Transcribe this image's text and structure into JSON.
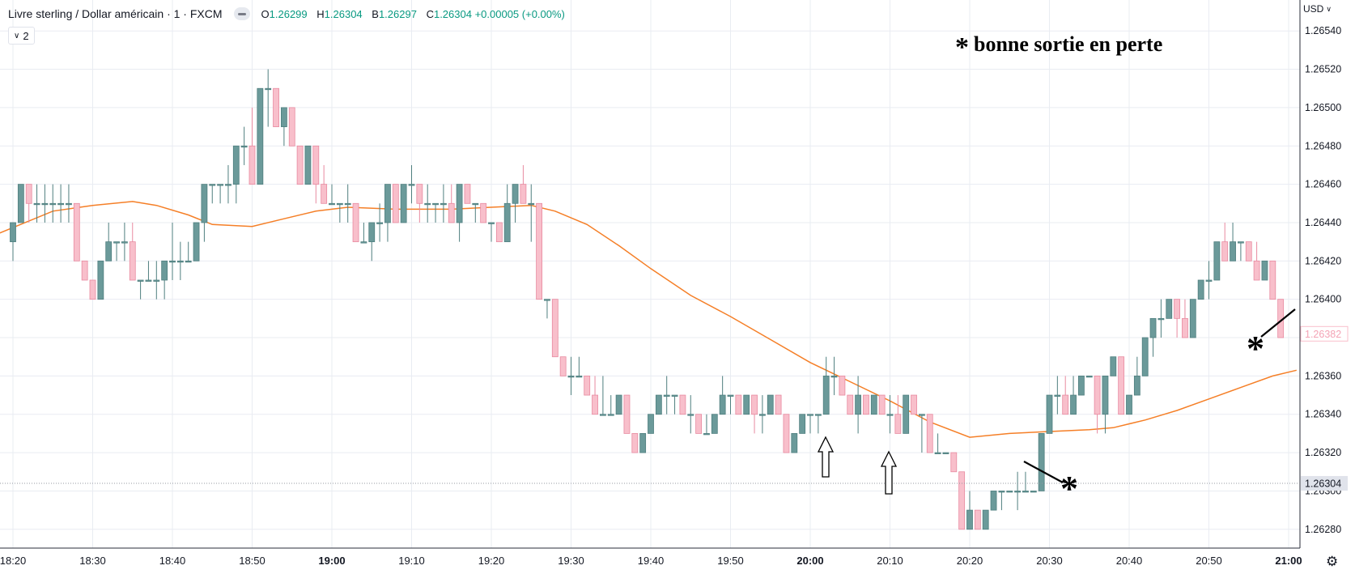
{
  "header": {
    "title": "Livre sterling / Dollar américain · 1 · FXCM",
    "ohlc": [
      {
        "k": "O",
        "v": "1.26299"
      },
      {
        "k": "H",
        "v": "1.26304"
      },
      {
        "k": "B",
        "v": "1.26297"
      },
      {
        "k": "C",
        "v": "1.26304 +0.00005 (+0.00%)"
      }
    ]
  },
  "indicator_toggle": {
    "count": "2"
  },
  "currency": "USD",
  "annotation": {
    "text": "bonne sortie en perte",
    "star": "*"
  },
  "colors": {
    "up": "#6b9a9a",
    "down": "#f8bfcb",
    "ma": "#f57f27",
    "grid": "#e9ecf2"
  },
  "chart_data": {
    "type": "candlestick",
    "y_ticks": [
      1.2628,
      1.263,
      1.2632,
      1.2634,
      1.2636,
      1.2638,
      1.264,
      1.2642,
      1.2644,
      1.2646,
      1.2648,
      1.265,
      1.2652,
      1.2654
    ],
    "y_tick_labels": [
      "1.26280",
      "1.26300",
      "1.26320",
      "1.26340",
      "1.26360",
      "",
      "1.26400",
      "1.26420",
      "1.26440",
      "1.26460",
      "1.26480",
      "1.26500",
      "1.26520",
      "1.26540"
    ],
    "ylim": [
      1.26274,
      1.26546
    ],
    "x_ticks": [
      {
        "m": 0,
        "label": "18:20",
        "bold": false
      },
      {
        "m": 10,
        "label": "18:30",
        "bold": false
      },
      {
        "m": 20,
        "label": "18:40",
        "bold": false
      },
      {
        "m": 30,
        "label": "18:50",
        "bold": false
      },
      {
        "m": 40,
        "label": "19:00",
        "bold": true
      },
      {
        "m": 50,
        "label": "19:10",
        "bold": false
      },
      {
        "m": 60,
        "label": "19:20",
        "bold": false
      },
      {
        "m": 70,
        "label": "19:30",
        "bold": false
      },
      {
        "m": 80,
        "label": "19:40",
        "bold": false
      },
      {
        "m": 90,
        "label": "19:50",
        "bold": false
      },
      {
        "m": 100,
        "label": "20:00",
        "bold": true
      },
      {
        "m": 110,
        "label": "20:10",
        "bold": false
      },
      {
        "m": 120,
        "label": "20:20",
        "bold": false
      },
      {
        "m": 130,
        "label": "20:30",
        "bold": false
      },
      {
        "m": 140,
        "label": "20:40",
        "bold": false
      },
      {
        "m": 150,
        "label": "20:50",
        "bold": false
      },
      {
        "m": 160,
        "label": "21:00",
        "bold": true
      }
    ],
    "last_price": {
      "value": 1.26304,
      "label": "1.26304"
    },
    "marker_price": {
      "value": 1.26382,
      "label": "1.26382"
    },
    "ohlc": [
      [
        1.2643,
        1.2644,
        1.2642,
        1.2644
      ],
      [
        1.2644,
        1.2646,
        1.2644,
        1.2646
      ],
      [
        1.2646,
        1.2646,
        1.2644,
        1.2645
      ],
      [
        1.2645,
        1.2646,
        1.2644,
        1.2645
      ],
      [
        1.2645,
        1.2646,
        1.2644,
        1.2645
      ],
      [
        1.2645,
        1.2646,
        1.2644,
        1.2645
      ],
      [
        1.2645,
        1.2646,
        1.2644,
        1.2645
      ],
      [
        1.2645,
        1.2646,
        1.2644,
        1.2645
      ],
      [
        1.2645,
        1.2645,
        1.2642,
        1.2642
      ],
      [
        1.2642,
        1.2642,
        1.2641,
        1.2641
      ],
      [
        1.2641,
        1.2641,
        1.264,
        1.264
      ],
      [
        1.264,
        1.2642,
        1.264,
        1.2642
      ],
      [
        1.2642,
        1.2644,
        1.2642,
        1.2643
      ],
      [
        1.2643,
        1.2643,
        1.2642,
        1.2643
      ],
      [
        1.2643,
        1.2644,
        1.2642,
        1.2643
      ],
      [
        1.2643,
        1.2644,
        1.2641,
        1.2641
      ],
      [
        1.2641,
        1.2641,
        1.264,
        1.2641
      ],
      [
        1.2641,
        1.2642,
        1.2641,
        1.2641
      ],
      [
        1.2641,
        1.2642,
        1.264,
        1.2641
      ],
      [
        1.2641,
        1.2642,
        1.264,
        1.2642
      ],
      [
        1.2642,
        1.2644,
        1.2641,
        1.2642
      ],
      [
        1.2642,
        1.2643,
        1.2641,
        1.2642
      ],
      [
        1.2642,
        1.2643,
        1.2642,
        1.2642
      ],
      [
        1.2642,
        1.2644,
        1.2642,
        1.2644
      ],
      [
        1.2644,
        1.2646,
        1.2643,
        1.2646
      ],
      [
        1.2646,
        1.2646,
        1.2645,
        1.2646
      ],
      [
        1.2646,
        1.2646,
        1.2645,
        1.2646
      ],
      [
        1.2646,
        1.2647,
        1.2645,
        1.2646
      ],
      [
        1.2646,
        1.2648,
        1.2645,
        1.2648
      ],
      [
        1.2648,
        1.2649,
        1.2647,
        1.2648
      ],
      [
        1.2648,
        1.265,
        1.2646,
        1.2646
      ],
      [
        1.2646,
        1.2651,
        1.2646,
        1.2651
      ],
      [
        1.2651,
        1.2652,
        1.2649,
        1.2651
      ],
      [
        1.2651,
        1.2651,
        1.2649,
        1.2649
      ],
      [
        1.2649,
        1.265,
        1.2648,
        1.265
      ],
      [
        1.265,
        1.265,
        1.2648,
        1.2648
      ],
      [
        1.2648,
        1.2648,
        1.2646,
        1.2646
      ],
      [
        1.2646,
        1.2648,
        1.2646,
        1.2648
      ],
      [
        1.2648,
        1.2648,
        1.2645,
        1.2646
      ],
      [
        1.2646,
        1.2647,
        1.2645,
        1.2645
      ],
      [
        1.2645,
        1.2646,
        1.2645,
        1.2645
      ],
      [
        1.2645,
        1.2645,
        1.2644,
        1.2645
      ],
      [
        1.2645,
        1.2646,
        1.2644,
        1.2645
      ],
      [
        1.2645,
        1.2645,
        1.2643,
        1.2643
      ],
      [
        1.2643,
        1.2644,
        1.2643,
        1.2643
      ],
      [
        1.2643,
        1.2644,
        1.2642,
        1.2644
      ],
      [
        1.2644,
        1.2645,
        1.2643,
        1.2644
      ],
      [
        1.2644,
        1.2646,
        1.2643,
        1.2646
      ],
      [
        1.2646,
        1.2646,
        1.2644,
        1.2644
      ],
      [
        1.2644,
        1.2646,
        1.2644,
        1.2646
      ],
      [
        1.2646,
        1.2647,
        1.2645,
        1.2646
      ],
      [
        1.2646,
        1.2646,
        1.2644,
        1.2645
      ],
      [
        1.2645,
        1.2646,
        1.2644,
        1.2645
      ],
      [
        1.2645,
        1.2645,
        1.2644,
        1.2645
      ],
      [
        1.2645,
        1.2646,
        1.2644,
        1.2645
      ],
      [
        1.2645,
        1.2646,
        1.2644,
        1.2644
      ],
      [
        1.2644,
        1.2646,
        1.2643,
        1.2646
      ],
      [
        1.2646,
        1.2646,
        1.2645,
        1.2645
      ],
      [
        1.2645,
        1.2645,
        1.2644,
        1.2645
      ],
      [
        1.2645,
        1.2645,
        1.2644,
        1.2644
      ],
      [
        1.2644,
        1.2644,
        1.2643,
        1.2644
      ],
      [
        1.2644,
        1.2644,
        1.2643,
        1.2643
      ],
      [
        1.2643,
        1.2646,
        1.2643,
        1.2645
      ],
      [
        1.2645,
        1.2646,
        1.2644,
        1.2646
      ],
      [
        1.2646,
        1.2647,
        1.2645,
        1.2645
      ],
      [
        1.2645,
        1.2646,
        1.2643,
        1.2645
      ],
      [
        1.2645,
        1.2645,
        1.264,
        1.264
      ],
      [
        1.264,
        1.264,
        1.2639,
        1.264
      ],
      [
        1.264,
        1.264,
        1.2637,
        1.2637
      ],
      [
        1.2637,
        1.2637,
        1.2636,
        1.2636
      ],
      [
        1.2636,
        1.2637,
        1.2635,
        1.2636
      ],
      [
        1.2636,
        1.2637,
        1.2636,
        1.2636
      ],
      [
        1.2636,
        1.2636,
        1.2635,
        1.2635
      ],
      [
        1.2635,
        1.2636,
        1.2634,
        1.2634
      ],
      [
        1.2634,
        1.2636,
        1.2634,
        1.2634
      ],
      [
        1.2634,
        1.2635,
        1.2634,
        1.2634
      ],
      [
        1.2634,
        1.2635,
        1.2634,
        1.2635
      ],
      [
        1.2635,
        1.2635,
        1.2633,
        1.2633
      ],
      [
        1.2633,
        1.2633,
        1.2632,
        1.2632
      ],
      [
        1.2632,
        1.2633,
        1.2632,
        1.2633
      ],
      [
        1.2633,
        1.2634,
        1.2633,
        1.2634
      ],
      [
        1.2634,
        1.2635,
        1.2634,
        1.2635
      ],
      [
        1.2635,
        1.2636,
        1.2634,
        1.2635
      ],
      [
        1.2635,
        1.2635,
        1.2634,
        1.2635
      ],
      [
        1.2635,
        1.2635,
        1.2634,
        1.2634
      ],
      [
        1.2634,
        1.2635,
        1.2633,
        1.2634
      ],
      [
        1.2634,
        1.2634,
        1.2633,
        1.2633
      ],
      [
        1.2633,
        1.2634,
        1.2633,
        1.2633
      ],
      [
        1.2633,
        1.2634,
        1.2633,
        1.2634
      ],
      [
        1.2634,
        1.2636,
        1.2634,
        1.2635
      ],
      [
        1.2635,
        1.2635,
        1.2634,
        1.2635
      ],
      [
        1.2635,
        1.2635,
        1.2634,
        1.2634
      ],
      [
        1.2634,
        1.2635,
        1.2634,
        1.2635
      ],
      [
        1.2635,
        1.2635,
        1.2633,
        1.2634
      ],
      [
        1.2634,
        1.2635,
        1.2633,
        1.2634
      ],
      [
        1.2634,
        1.2635,
        1.2634,
        1.2635
      ],
      [
        1.2635,
        1.2635,
        1.2634,
        1.2634
      ],
      [
        1.2634,
        1.2634,
        1.2632,
        1.2632
      ],
      [
        1.2632,
        1.2633,
        1.2632,
        1.2633
      ],
      [
        1.2633,
        1.2634,
        1.2633,
        1.2634
      ],
      [
        1.2634,
        1.2634,
        1.2633,
        1.2634
      ],
      [
        1.2634,
        1.2634,
        1.2633,
        1.2634
      ],
      [
        1.2634,
        1.2637,
        1.2634,
        1.2636
      ],
      [
        1.2636,
        1.2637,
        1.2635,
        1.2636
      ],
      [
        1.2636,
        1.2636,
        1.2635,
        1.2635
      ],
      [
        1.2635,
        1.2635,
        1.2634,
        1.2634
      ],
      [
        1.2634,
        1.2636,
        1.2633,
        1.2635
      ],
      [
        1.2635,
        1.2635,
        1.2634,
        1.2634
      ],
      [
        1.2634,
        1.2635,
        1.2634,
        1.2635
      ],
      [
        1.2635,
        1.2635,
        1.2634,
        1.2634
      ],
      [
        1.2634,
        1.2635,
        1.2633,
        1.2634
      ],
      [
        1.2634,
        1.2635,
        1.2633,
        1.2633
      ],
      [
        1.2633,
        1.2635,
        1.2633,
        1.2635
      ],
      [
        1.2635,
        1.2635,
        1.2634,
        1.2634
      ],
      [
        1.2634,
        1.2634,
        1.2632,
        1.2634
      ],
      [
        1.2634,
        1.2634,
        1.2632,
        1.2632
      ],
      [
        1.2632,
        1.2633,
        1.2632,
        1.2632
      ],
      [
        1.2632,
        1.2632,
        1.2632,
        1.2632
      ],
      [
        1.2632,
        1.2632,
        1.2631,
        1.2631
      ],
      [
        1.2631,
        1.2631,
        1.2628,
        1.2628
      ],
      [
        1.2628,
        1.263,
        1.2628,
        1.2629
      ],
      [
        1.2629,
        1.2629,
        1.2628,
        1.2628
      ],
      [
        1.2628,
        1.2629,
        1.2628,
        1.2629
      ],
      [
        1.2629,
        1.263,
        1.2629,
        1.263
      ],
      [
        1.263,
        1.263,
        1.2629,
        1.263
      ],
      [
        1.263,
        1.263,
        1.263,
        1.263
      ],
      [
        1.263,
        1.2631,
        1.2629,
        1.263
      ],
      [
        1.263,
        1.2631,
        1.263,
        1.263
      ],
      [
        1.263,
        1.263,
        1.263,
        1.263
      ],
      [
        1.263,
        1.2633,
        1.263,
        1.2633
      ],
      [
        1.2633,
        1.2635,
        1.2633,
        1.2635
      ],
      [
        1.2635,
        1.2636,
        1.2634,
        1.2635
      ],
      [
        1.2635,
        1.2636,
        1.2634,
        1.2634
      ],
      [
        1.2634,
        1.2636,
        1.2634,
        1.2635
      ],
      [
        1.2635,
        1.2636,
        1.2635,
        1.2636
      ],
      [
        1.2636,
        1.2636,
        1.2636,
        1.2636
      ],
      [
        1.2636,
        1.2636,
        1.2633,
        1.2634
      ],
      [
        1.2634,
        1.2636,
        1.2633,
        1.2636
      ],
      [
        1.2636,
        1.2637,
        1.2636,
        1.2637
      ],
      [
        1.2637,
        1.2637,
        1.2634,
        1.2634
      ],
      [
        1.2634,
        1.2635,
        1.2634,
        1.2635
      ],
      [
        1.2635,
        1.2637,
        1.2635,
        1.2636
      ],
      [
        1.2636,
        1.2638,
        1.2636,
        1.2638
      ],
      [
        1.2638,
        1.2639,
        1.2637,
        1.2639
      ],
      [
        1.2639,
        1.264,
        1.2638,
        1.2639
      ],
      [
        1.2639,
        1.264,
        1.2639,
        1.264
      ],
      [
        1.264,
        1.264,
        1.2638,
        1.2639
      ],
      [
        1.2639,
        1.264,
        1.2638,
        1.2638
      ],
      [
        1.2638,
        1.264,
        1.2638,
        1.264
      ],
      [
        1.264,
        1.2641,
        1.264,
        1.2641
      ],
      [
        1.2641,
        1.2642,
        1.264,
        1.2641
      ],
      [
        1.2641,
        1.2643,
        1.2641,
        1.2643
      ],
      [
        1.2643,
        1.2644,
        1.2642,
        1.2642
      ],
      [
        1.2642,
        1.2644,
        1.2642,
        1.2643
      ],
      [
        1.2643,
        1.2643,
        1.2642,
        1.2643
      ],
      [
        1.2643,
        1.2643,
        1.2642,
        1.2642
      ],
      [
        1.2642,
        1.2643,
        1.2641,
        1.2641
      ],
      [
        1.2641,
        1.2642,
        1.2641,
        1.2642
      ],
      [
        1.2642,
        1.2642,
        1.264,
        1.264
      ],
      [
        1.264,
        1.264,
        1.2638,
        1.2638
      ]
    ],
    "ma": [
      [
        -2,
        1.26434
      ],
      [
        5,
        1.26446
      ],
      [
        10,
        1.26449
      ],
      [
        15,
        1.26451
      ],
      [
        18,
        1.26449
      ],
      [
        22,
        1.26444
      ],
      [
        25,
        1.26439
      ],
      [
        30,
        1.26438
      ],
      [
        34,
        1.26442
      ],
      [
        38,
        1.26446
      ],
      [
        42,
        1.26448
      ],
      [
        48,
        1.26447
      ],
      [
        55,
        1.26447
      ],
      [
        60,
        1.26448
      ],
      [
        65,
        1.26449
      ],
      [
        68,
        1.26446
      ],
      [
        72,
        1.26439
      ],
      [
        76,
        1.26428
      ],
      [
        80,
        1.26416
      ],
      [
        85,
        1.26402
      ],
      [
        90,
        1.26391
      ],
      [
        95,
        1.26379
      ],
      [
        100,
        1.26367
      ],
      [
        105,
        1.26357
      ],
      [
        110,
        1.26347
      ],
      [
        115,
        1.26336
      ],
      [
        120,
        1.26328
      ],
      [
        125,
        1.2633
      ],
      [
        130,
        1.26331
      ],
      [
        135,
        1.26332
      ],
      [
        138,
        1.26333
      ],
      [
        142,
        1.26337
      ],
      [
        146,
        1.26342
      ],
      [
        150,
        1.26348
      ],
      [
        154,
        1.26354
      ],
      [
        158,
        1.2636
      ],
      [
        161,
        1.26363
      ]
    ]
  }
}
